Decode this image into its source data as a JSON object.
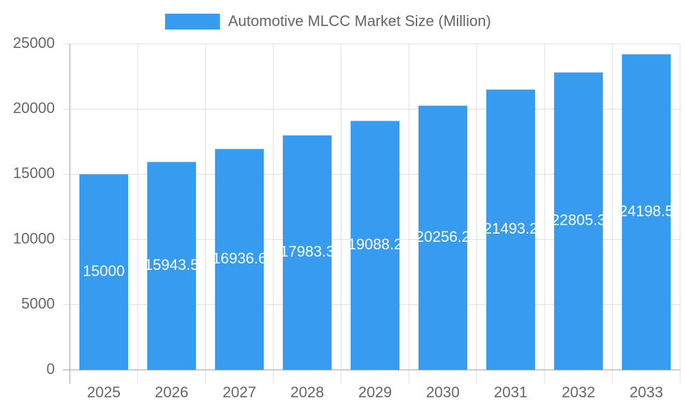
{
  "chart_data": {
    "type": "bar",
    "series": [
      {
        "name": "Automotive MLCC Market Size (Million)",
        "color": "#379bf0",
        "values": [
          15000,
          15943.5,
          16936.6,
          17983.3,
          19088.2,
          20256.2,
          21493.2,
          22805.3,
          24198.5
        ]
      }
    ],
    "categories": [
      "2025",
      "2026",
      "2027",
      "2028",
      "2029",
      "2030",
      "2031",
      "2032",
      "2033"
    ],
    "ylim": [
      0,
      25000
    ],
    "yticks": [
      0,
      5000,
      10000,
      15000,
      20000,
      25000
    ],
    "grid": true
  }
}
